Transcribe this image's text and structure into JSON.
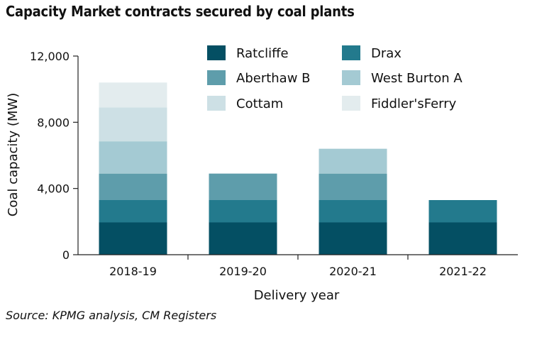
{
  "title": "Capacity Market contracts secured by coal plants",
  "source": "Source: KPMG analysis, CM Registers",
  "chart_data": {
    "type": "bar",
    "stacked": true,
    "categories": [
      "2018-19",
      "2019-20",
      "2020-21",
      "2021-22"
    ],
    "xlabel": "Delivery year",
    "ylabel": "Coal capacity (MW)",
    "ylim": [
      0,
      12000
    ],
    "yticks": [
      0,
      4000,
      8000,
      12000
    ],
    "ytick_labels": [
      "0",
      "4,000",
      "8,000",
      "12,000"
    ],
    "grid": false,
    "legend_position": "top-right",
    "series": [
      {
        "name": "Ratcliffe",
        "color": "#044f63",
        "values": [
          1950,
          1950,
          1950,
          1950
        ]
      },
      {
        "name": "Drax",
        "color": "#237a8d",
        "values": [
          1350,
          1350,
          1350,
          1350
        ]
      },
      {
        "name": "Aberthaw B",
        "color": "#5e9dab",
        "values": [
          1600,
          1600,
          1600,
          0
        ]
      },
      {
        "name": "West Burton A",
        "color": "#a4cad3",
        "values": [
          1950,
          0,
          1500,
          0
        ]
      },
      {
        "name": "Cottam",
        "color": "#cde0e5",
        "values": [
          2050,
          0,
          0,
          0
        ]
      },
      {
        "name": "Fiddler'sFerry",
        "color": "#e3ecee",
        "values": [
          1500,
          0,
          0,
          0
        ]
      }
    ]
  }
}
